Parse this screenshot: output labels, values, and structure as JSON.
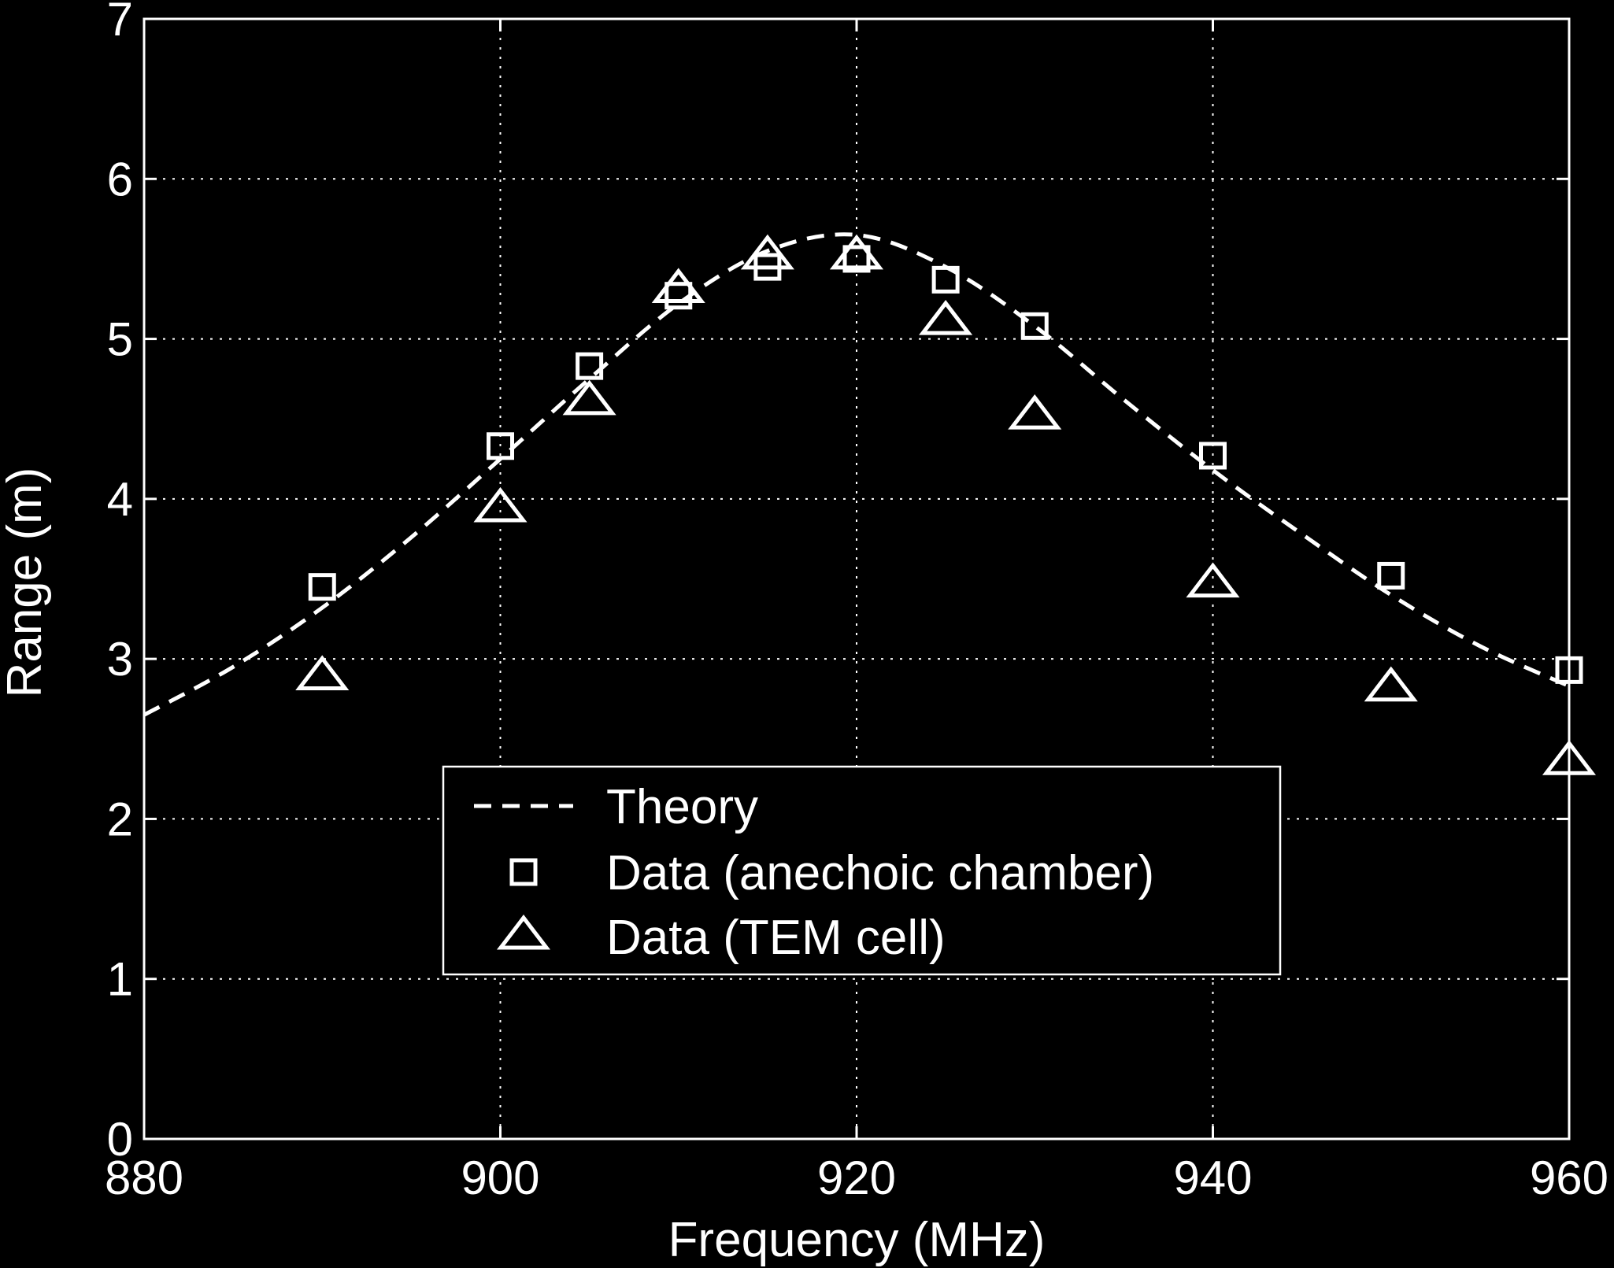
{
  "chart_data": {
    "type": "line",
    "title": "",
    "xlabel": "Frequency (MHz)",
    "ylabel": "Range (m)",
    "xlim": [
      880,
      960
    ],
    "ylim": [
      0,
      7
    ],
    "xticks": [
      880,
      900,
      920,
      940,
      960
    ],
    "yticks": [
      0,
      1,
      2,
      3,
      4,
      5,
      6,
      7
    ],
    "grid": true,
    "legend_position": "lower-center",
    "colors": {
      "background": "#000000",
      "foreground": "#ffffff"
    },
    "series": [
      {
        "name": "Theory",
        "style": "dashed-line",
        "x": [
          880,
          885,
          890,
          895,
          900,
          905,
          910,
          915,
          920,
          925,
          930,
          935,
          940,
          945,
          950,
          955,
          960
        ],
        "y": [
          2.65,
          2.95,
          3.32,
          3.76,
          4.25,
          4.75,
          5.22,
          5.55,
          5.65,
          5.45,
          5.08,
          4.62,
          4.18,
          3.78,
          3.4,
          3.08,
          2.83
        ]
      },
      {
        "name": "Data (anechoic chamber)",
        "style": "square-marker",
        "x": [
          890,
          900,
          905,
          910,
          915,
          920,
          925,
          930,
          940,
          950,
          960
        ],
        "y": [
          3.45,
          4.33,
          4.83,
          5.27,
          5.45,
          5.5,
          5.37,
          5.08,
          4.27,
          3.52,
          2.93
        ]
      },
      {
        "name": "Data (TEM cell)",
        "style": "triangle-marker",
        "x": [
          890,
          900,
          905,
          910,
          915,
          920,
          925,
          930,
          940,
          950,
          960
        ],
        "y": [
          2.9,
          3.95,
          4.62,
          5.32,
          5.53,
          5.53,
          5.12,
          4.53,
          3.48,
          2.83,
          2.37
        ]
      }
    ]
  }
}
